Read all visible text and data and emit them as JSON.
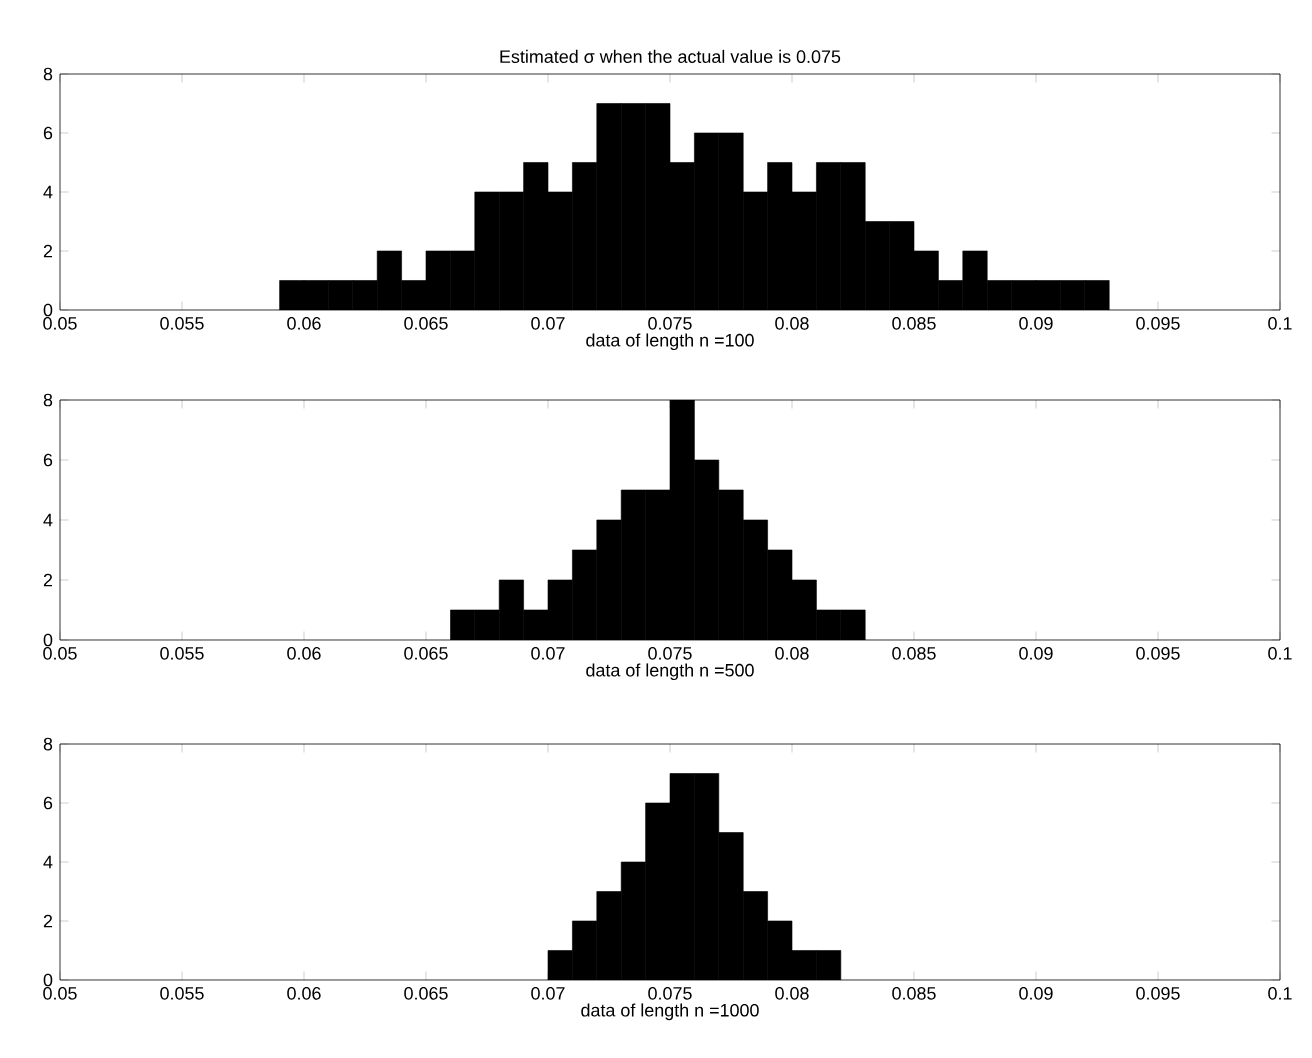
{
  "chart_data": [
    {
      "type": "histogram",
      "title": "Estimated σ when the actual value is 0.075",
      "xlabel": "data of length n =100",
      "color": "#000000",
      "bins": [
        0.059,
        0.06,
        0.061,
        0.062,
        0.063,
        0.064,
        0.065,
        0.066,
        0.067,
        0.068,
        0.069,
        0.07,
        0.071,
        0.072,
        0.073,
        0.074,
        0.075,
        0.076,
        0.077,
        0.078,
        0.079,
        0.08,
        0.081,
        0.082,
        0.083,
        0.084,
        0.085,
        0.086,
        0.087,
        0.088,
        0.089,
        0.09,
        0.091,
        0.092,
        0.093
      ],
      "values": [
        1,
        1,
        1,
        1,
        2,
        1,
        2,
        2,
        4,
        4,
        5,
        4,
        5,
        7,
        7,
        7,
        5,
        6,
        6,
        4,
        5,
        4,
        5,
        5,
        3,
        3,
        2,
        1,
        2,
        1,
        1,
        1,
        1,
        1
      ],
      "xlim": [
        0.05,
        0.1
      ],
      "ylim": [
        0,
        8
      ],
      "xticks": [
        0.05,
        0.055,
        0.06,
        0.065,
        0.07,
        0.075,
        0.08,
        0.085,
        0.09,
        0.095,
        0.1
      ],
      "yticks": [
        0,
        2,
        4,
        6,
        8
      ]
    },
    {
      "type": "histogram",
      "xlabel": "data of length n =500",
      "color": "#000000",
      "bins": [
        0.066,
        0.067,
        0.068,
        0.069,
        0.07,
        0.071,
        0.072,
        0.073,
        0.074,
        0.075,
        0.076,
        0.077,
        0.078,
        0.079,
        0.08,
        0.081,
        0.082,
        0.083
      ],
      "values": [
        1,
        1,
        2,
        1,
        2,
        3,
        4,
        5,
        5,
        8,
        6,
        5,
        4,
        3,
        2,
        1,
        1
      ],
      "xlim": [
        0.05,
        0.1
      ],
      "ylim": [
        0,
        8
      ],
      "xticks": [
        0.05,
        0.055,
        0.06,
        0.065,
        0.07,
        0.075,
        0.08,
        0.085,
        0.09,
        0.095,
        0.1
      ],
      "yticks": [
        0,
        2,
        4,
        6,
        8
      ]
    },
    {
      "type": "histogram",
      "xlabel": "data of length n =1000",
      "color": "#000000",
      "bins": [
        0.07,
        0.071,
        0.072,
        0.073,
        0.074,
        0.075,
        0.076,
        0.077,
        0.078,
        0.079,
        0.08,
        0.081,
        0.082
      ],
      "values": [
        1,
        2,
        3,
        4,
        6,
        7,
        7,
        5,
        3,
        2,
        1,
        1
      ],
      "xlim": [
        0.05,
        0.1
      ],
      "ylim": [
        0,
        8
      ],
      "xticks": [
        0.05,
        0.055,
        0.06,
        0.065,
        0.07,
        0.075,
        0.08,
        0.085,
        0.09,
        0.095,
        0.1
      ],
      "yticks": [
        0,
        2,
        4,
        6,
        8
      ]
    }
  ]
}
